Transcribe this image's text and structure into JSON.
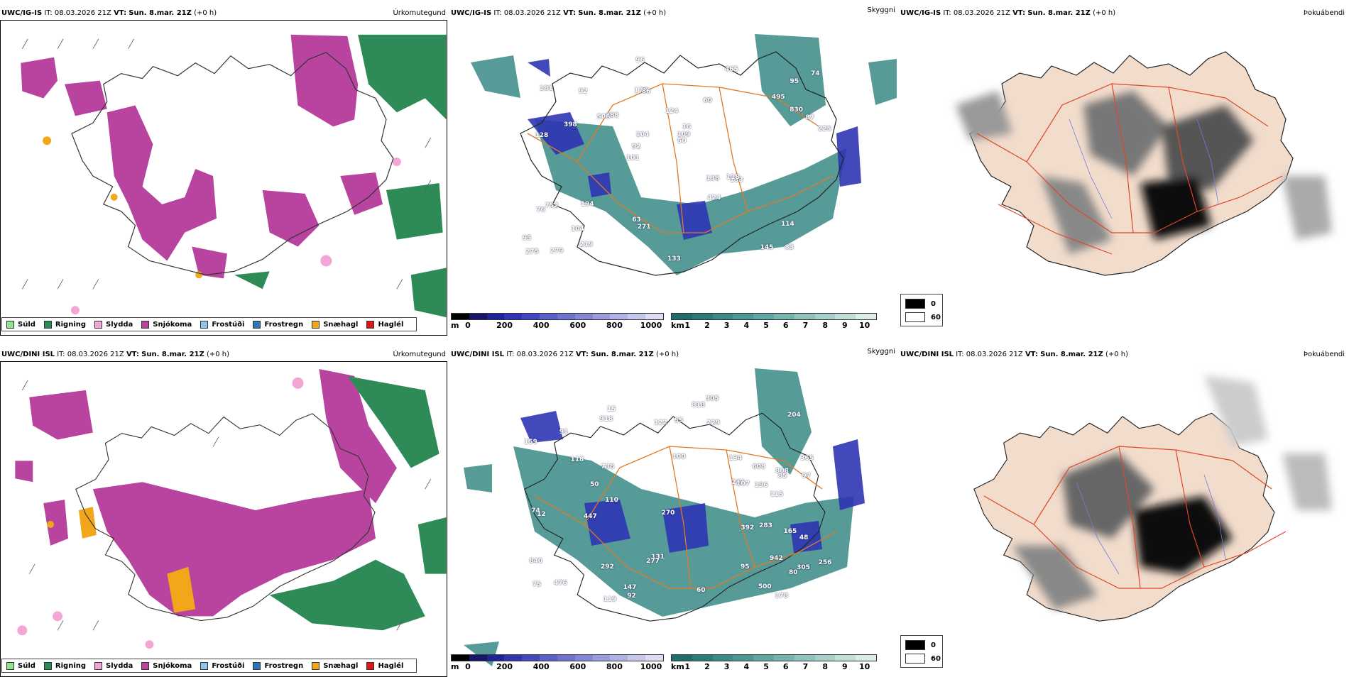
{
  "rows": [
    {
      "model": "UWC/IG-IS",
      "it_label": "IT:",
      "it_value": "08.03.2026 21Z",
      "vt_label": "VT:",
      "vt_value": "Sun. 8.mar. 21Z",
      "offset": "(+0 h)",
      "panel_titles": [
        "Úrkomutegund",
        "Skyggni",
        "Þokuábendi"
      ],
      "cloud_base_tags": [
        "83",
        "128",
        "95",
        "101",
        "60",
        "279",
        "178",
        "124",
        "752",
        "488",
        "95",
        "104",
        "86",
        "16",
        "133",
        "181",
        "96",
        "225",
        "138",
        "830",
        "92",
        "63",
        "104",
        "92",
        "465",
        "194",
        "145",
        "114",
        "118",
        "133",
        "506",
        "398",
        "424",
        "219",
        "87",
        "109",
        "275",
        "271",
        "50",
        "76",
        "495",
        "74"
      ]
    },
    {
      "model": "UWC/DINI ISL",
      "it_label": "IT:",
      "it_value": "08.03.2026 21Z",
      "vt_label": "VT:",
      "vt_value": "Sun. 8.mar. 21Z",
      "offset": "(+0 h)",
      "panel_titles": [
        "Úrkomutegund",
        "Skyggni",
        "Þokuábendi"
      ],
      "cloud_base_tags": [
        "942",
        "365",
        "305",
        "100",
        "75",
        "15",
        "808",
        "292",
        "204",
        "118",
        "97",
        "159",
        "115",
        "92",
        "840",
        "91",
        "80",
        "918",
        "131",
        "85",
        "74",
        "12",
        "60",
        "241",
        "147",
        "277",
        "818",
        "229",
        "134",
        "256",
        "447",
        "95",
        "119",
        "270",
        "165",
        "500",
        "107",
        "122",
        "178",
        "110",
        "283",
        "196",
        "55",
        "50",
        "48",
        "392",
        "476",
        "305",
        "738",
        "608"
      ]
    }
  ],
  "precip_legend": [
    {
      "label": "Súld",
      "color": "#8fe38f"
    },
    {
      "label": "Rigning",
      "color": "#2e8b57"
    },
    {
      "label": "Slydda",
      "color": "#f3a6d6"
    },
    {
      "label": "Snjókoma",
      "color": "#b8449f"
    },
    {
      "label": "Frostúði",
      "color": "#8ec5ef"
    },
    {
      "label": "Frostregn",
      "color": "#2f73b5"
    },
    {
      "label": "Snæhagl",
      "color": "#f2a71b"
    },
    {
      "label": "Haglél",
      "color": "#e01616"
    }
  ],
  "cloud_base_bar": {
    "unit": "m",
    "ticks": [
      "0",
      "200",
      "400",
      "600",
      "800",
      "1000"
    ],
    "colors": [
      "#000000",
      "#15156a",
      "#1e2398",
      "#2f35b3",
      "#4448bf",
      "#5b5fc8",
      "#6f72cf",
      "#8487d6",
      "#9a9cdd",
      "#b0b1e4",
      "#c6c7eb",
      "#dcdcf2"
    ]
  },
  "visibility_bar": {
    "unit": "km",
    "ticks": [
      "1",
      "2",
      "3",
      "4",
      "5",
      "6",
      "7",
      "8",
      "9",
      "10"
    ],
    "colors": [
      "#1f6d6b",
      "#2b7c78",
      "#3a8a86",
      "#4c9893",
      "#60a6a1",
      "#77b4af",
      "#8fc2bd",
      "#a8d0cb",
      "#c2ded9",
      "#dcece8"
    ]
  },
  "fog_legend": {
    "values": [
      "0",
      "60"
    ],
    "colors": [
      "#000000",
      "#ffffff"
    ]
  }
}
